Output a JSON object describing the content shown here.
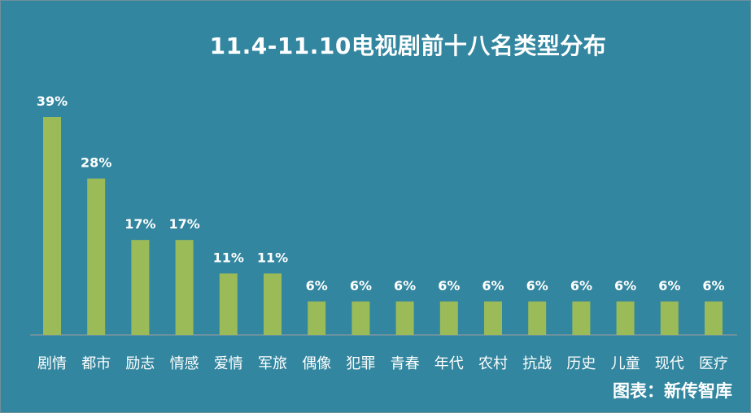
{
  "chart_data": {
    "type": "bar",
    "title": "11.4-11.10电视剧前十八名类型分布",
    "categories": [
      "剧情",
      "都市",
      "励志",
      "情感",
      "爱情",
      "军旅",
      "偶像",
      "犯罪",
      "青春",
      "年代",
      "农村",
      "抗战",
      "历史",
      "儿童",
      "现代",
      "医疗"
    ],
    "values": [
      39,
      28,
      17,
      17,
      11,
      11,
      6,
      6,
      6,
      6,
      6,
      6,
      6,
      6,
      6,
      6
    ],
    "value_labels": [
      "39%",
      "28%",
      "17%",
      "17%",
      "11%",
      "11%",
      "6%",
      "6%",
      "6%",
      "6%",
      "6%",
      "6%",
      "6%",
      "6%",
      "6%",
      "6%"
    ],
    "xlabel": "",
    "ylabel": "",
    "ylim": [
      0,
      39
    ],
    "grid": false,
    "colors": {
      "background": "#32869f",
      "bar": "#9bbb59",
      "text": "#ffffff"
    }
  },
  "source": "图表：新传智库"
}
